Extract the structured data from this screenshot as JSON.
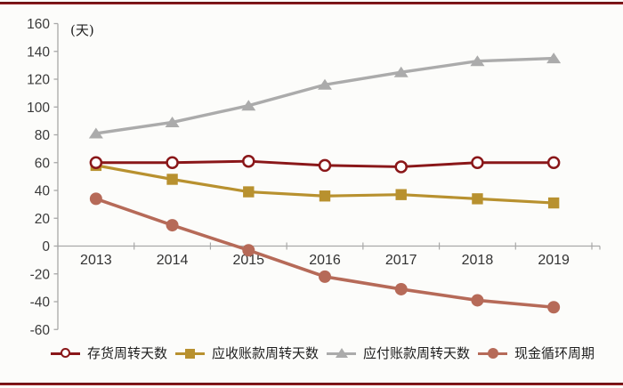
{
  "page": {
    "background": "#fcfcfa",
    "border_bar_color": "#8b181b"
  },
  "chart_data": {
    "type": "line",
    "unit_label": "(天)",
    "categories": [
      "2013",
      "2014",
      "2015",
      "2016",
      "2017",
      "2018",
      "2019"
    ],
    "series": [
      {
        "name": "存货周转天数",
        "values": [
          60,
          60,
          61,
          58,
          57,
          60,
          60
        ],
        "color": "#8a1719",
        "marker": "open-circle",
        "line_width": 3.0
      },
      {
        "name": "应收账款周转天数",
        "values": [
          58,
          48,
          39,
          36,
          37,
          34,
          31
        ],
        "color": "#b8912f",
        "marker": "square",
        "line_width": 3.2
      },
      {
        "name": "应付账款周转天数",
        "values": [
          81,
          89,
          101,
          116,
          125,
          133,
          135
        ],
        "color": "#ababab",
        "marker": "triangle",
        "line_width": 3.4
      },
      {
        "name": "现金循环周期",
        "values": [
          34,
          15,
          -3,
          -22,
          -31,
          -39,
          -44
        ],
        "color": "#b66a58",
        "marker": "circle",
        "line_width": 3.6
      }
    ],
    "ylim": [
      -60,
      160
    ],
    "ytick_step": 20,
    "yticks": [
      160,
      140,
      120,
      100,
      80,
      60,
      40,
      20,
      0,
      -20,
      -40,
      -60
    ],
    "grid": false,
    "legend_position": "bottom",
    "axis_color": "#a8a8a8",
    "label_color": "#3a3a3a"
  }
}
